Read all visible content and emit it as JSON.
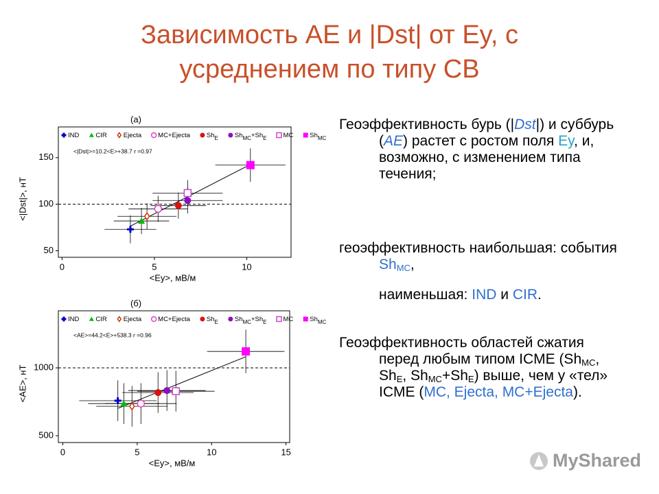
{
  "title": "Зависимость АЕ и |Dst| от Ey, с усреднением по типу СВ",
  "watermark": "MyShared",
  "chart_data": [
    {
      "type": "scatter",
      "panel_label": "(а)",
      "x_label": "<Ey>, мВ/м",
      "y_label": "<|Dst|>, нТ",
      "xlim": [
        -0.2,
        12.4
      ],
      "ylim": [
        43,
        183
      ],
      "xticks": [
        0,
        5,
        10
      ],
      "yticks": [
        50,
        100,
        150
      ],
      "reference_line": 100,
      "fit": {
        "slope": 10.2,
        "intercept": 38.7,
        "label": "<|Dst|>=10.2<E>+38.7   r =0.97"
      },
      "series": [
        {
          "name": [
            "IND"
          ],
          "color": "#0000cc",
          "marker": "plus",
          "x": [
            3.7
          ],
          "values": [
            73
          ],
          "xerr": [
            1.4
          ],
          "yerr": [
            15
          ]
        },
        {
          "name": [
            "CIR"
          ],
          "color": "#00bb00",
          "marker": "triangle",
          "x": [
            4.3
          ],
          "values": [
            82
          ],
          "xerr": [
            1.5
          ],
          "yerr": [
            14
          ]
        },
        {
          "name": [
            "Ejecta"
          ],
          "color": "#cc3300",
          "marker": "diamond-open",
          "x": [
            4.6
          ],
          "values": [
            87
          ],
          "xerr": [
            1.6
          ],
          "yerr": [
            14
          ]
        },
        {
          "name": [
            "MC+Ejecta"
          ],
          "color": "#e040c0",
          "marker": "circle-open",
          "x": [
            5.2
          ],
          "values": [
            95
          ],
          "xerr": [
            1.6
          ],
          "yerr": [
            14
          ]
        },
        {
          "name": [
            "Sh",
            "E"
          ],
          "color": "#dd1111",
          "marker": "circle",
          "x": [
            6.3
          ],
          "values": [
            98.5
          ],
          "xerr": [
            1.5
          ],
          "yerr": [
            14
          ]
        },
        {
          "name": [
            "Sh",
            "MC",
            "+Sh",
            "E"
          ],
          "color": "#8a10c0",
          "marker": "circle",
          "x": [
            6.8
          ],
          "values": [
            104
          ],
          "xerr": [
            1.9
          ],
          "yerr": [
            14
          ]
        },
        {
          "name": [
            "MC"
          ],
          "color": "#cc44cc",
          "marker": "square-open",
          "x": [
            6.8
          ],
          "values": [
            112
          ],
          "xerr": [
            1.9
          ],
          "yerr": [
            14
          ]
        },
        {
          "name": [
            "Sh",
            "MC"
          ],
          "color": "#ff00ff",
          "marker": "square",
          "x": [
            10.2
          ],
          "values": [
            142
          ],
          "xerr": [
            1.9
          ],
          "yerr": [
            18
          ]
        }
      ]
    },
    {
      "type": "scatter",
      "panel_label": "(б)",
      "x_label": "<Ey>, мВ/м",
      "y_label": "<AE>, нТ",
      "xlim": [
        -0.3,
        15.25
      ],
      "ylim": [
        450,
        1420
      ],
      "xticks": [
        0,
        5,
        10,
        15
      ],
      "yticks": [
        500,
        1000
      ],
      "reference_line": 1000,
      "fit": {
        "slope": 44.2,
        "intercept": 538.3,
        "label": "<AE>=44.2<E>+538.3    r =0.96"
      },
      "series": [
        {
          "name": [
            "IND"
          ],
          "color": "#0000cc",
          "marker": "plus",
          "x": [
            3.7
          ],
          "values": [
            758
          ],
          "xerr": [
            2.6
          ],
          "yerr": [
            150
          ]
        },
        {
          "name": [
            "CIR"
          ],
          "color": "#00bb00",
          "marker": "triangle",
          "x": [
            4.1
          ],
          "values": [
            737
          ],
          "xerr": [
            2.4
          ],
          "yerr": [
            150
          ]
        },
        {
          "name": [
            "Ejecta"
          ],
          "color": "#cc3300",
          "marker": "diamond-open",
          "x": [
            4.65
          ],
          "values": [
            717
          ],
          "xerr": [
            2.4
          ],
          "yerr": [
            150
          ]
        },
        {
          "name": [
            "MC+Ejecta"
          ],
          "color": "#e040c0",
          "marker": "circle-open",
          "x": [
            5.25
          ],
          "values": [
            737
          ],
          "xerr": [
            2.4
          ],
          "yerr": [
            150
          ]
        },
        {
          "name": [
            "Sh",
            "E"
          ],
          "color": "#dd1111",
          "marker": "circle",
          "x": [
            6.4
          ],
          "values": [
            818
          ],
          "xerr": [
            2.4
          ],
          "yerr": [
            150
          ]
        },
        {
          "name": [
            "Sh",
            "MC",
            "+Sh",
            "E"
          ],
          "color": "#8a10c0",
          "marker": "circle",
          "x": [
            7.0
          ],
          "values": [
            833
          ],
          "xerr": [
            2.6
          ],
          "yerr": [
            150
          ]
        },
        {
          "name": [
            "MC"
          ],
          "color": "#cc44cc",
          "marker": "square-open",
          "x": [
            7.6
          ],
          "values": [
            828
          ],
          "xerr": [
            2.6
          ],
          "yerr": [
            150
          ]
        },
        {
          "name": [
            "Sh",
            "MC"
          ],
          "color": "#ff00ff",
          "marker": "square",
          "x": [
            12.3
          ],
          "values": [
            1121
          ],
          "xerr": [
            2.6
          ],
          "yerr": [
            160
          ]
        }
      ]
    }
  ],
  "text": [
    [
      {
        "text": "Геоэффективность бурь (|"
      },
      {
        "text": "Dst",
        "color": "#2f6fcf",
        "italic": true
      },
      {
        "text": "|) и суббурь ("
      },
      {
        "text": "AE",
        "color": "#2f6fcf",
        "italic": true
      },
      {
        "text": ") растет с ростом поля "
      },
      {
        "text": "Ey",
        "color": "#2aa0c0"
      },
      {
        "text": ", и, возможно, с изменением типа течения;"
      }
    ],
    [
      {
        "text": "геоэффективность наибольшая: события "
      },
      {
        "text": "Sh",
        "color": "#2f6fcf"
      },
      {
        "text": "MC",
        "color": "#2f6fcf",
        "sub": true
      },
      {
        "text": ","
      }
    ],
    [
      {
        "text": "наименьшая: "
      },
      {
        "text": "IND",
        "color": "#2f6fcf"
      },
      {
        "text": " и "
      },
      {
        "text": "CIR",
        "color": "#2f6fcf"
      },
      {
        "text": "."
      }
    ],
    [
      {
        "text": "Геоэффективность областей сжатия перед любым типом ICME (Sh"
      },
      {
        "text": "MC",
        "sub": true
      },
      {
        "text": ", Sh"
      },
      {
        "text": "E",
        "sub": true
      },
      {
        "text": ", Sh"
      },
      {
        "text": "MC",
        "sub": true
      },
      {
        "text": "+Sh"
      },
      {
        "text": "E",
        "sub": true
      },
      {
        "text": ") выше, чем у «тел» ICME ("
      },
      {
        "text": "MC, Ejecta, MC+Ejecta",
        "color": "#2f6fcf"
      },
      {
        "text": ")."
      }
    ]
  ]
}
